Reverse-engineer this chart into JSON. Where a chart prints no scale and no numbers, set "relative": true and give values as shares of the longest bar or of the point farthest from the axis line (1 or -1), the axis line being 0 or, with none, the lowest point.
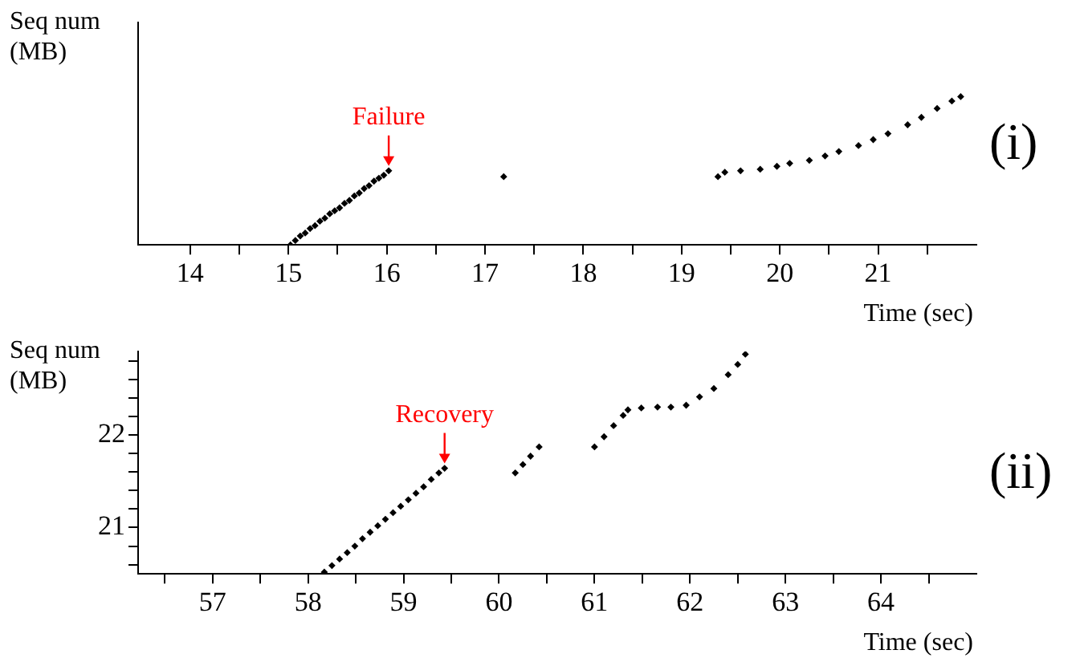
{
  "chart_data": [
    {
      "type": "scatter",
      "xlabel": "Time (sec)",
      "ylabel": "Seq num (MB)",
      "relative": true,
      "marker": "diamond",
      "grid": false,
      "annotations": [
        {
          "text": "Failure",
          "x": 16.02,
          "y": 0.5
        },
        "(i)"
      ],
      "xlim": [
        13.47,
        22.0
      ],
      "xticks": [
        14,
        {
          "value": 14.5,
          "label": null
        },
        15,
        {
          "value": 15.5,
          "label": null
        },
        16,
        {
          "value": 16.5,
          "label": null
        },
        17,
        {
          "value": 17.5,
          "label": null
        },
        18,
        {
          "value": 18.5,
          "label": null
        },
        19,
        {
          "value": 19.5,
          "label": null
        },
        20,
        {
          "value": 20.5,
          "label": null
        },
        21,
        {
          "value": 21.5,
          "label": null
        }
      ],
      "series": [
        {
          "color": "#000000",
          "x": [
            15.02,
            15.07,
            15.12,
            15.17,
            15.22,
            15.27,
            15.32,
            15.37,
            15.42,
            15.47,
            15.52,
            15.57,
            15.62,
            15.67,
            15.72,
            15.77,
            15.82,
            15.87,
            15.92,
            15.97,
            16.02,
            17.19,
            19.37,
            19.44,
            19.6,
            19.8,
            19.97,
            20.1,
            20.3,
            20.46,
            20.6,
            20.8,
            20.95,
            21.1,
            21.3,
            21.44,
            21.6,
            21.75,
            21.84
          ],
          "values": [
            0.0,
            0.03,
            0.06,
            0.08,
            0.11,
            0.13,
            0.16,
            0.18,
            0.21,
            0.23,
            0.25,
            0.28,
            0.3,
            0.33,
            0.35,
            0.38,
            0.4,
            0.43,
            0.45,
            0.47,
            0.5,
            0.46,
            0.46,
            0.49,
            0.5,
            0.51,
            0.53,
            0.55,
            0.57,
            0.6,
            0.63,
            0.67,
            0.71,
            0.75,
            0.81,
            0.86,
            0.92,
            0.97,
            1.0
          ]
        }
      ]
    },
    {
      "type": "scatter",
      "xlabel": "Time (sec)",
      "ylabel": "Seq num (MB)",
      "marker": "diamond",
      "grid": false,
      "annotations": [
        {
          "text": "Recovery",
          "x": 59.43,
          "y": 21.64
        },
        "(ii)"
      ],
      "xlim": [
        56.22,
        65.0
      ],
      "ylim": [
        20.5,
        22.9
      ],
      "xticks": [
        {
          "value": 56.5,
          "label": null
        },
        57,
        {
          "value": 57.5,
          "label": null
        },
        58,
        {
          "value": 58.5,
          "label": null
        },
        59,
        {
          "value": 59.5,
          "label": null
        },
        60,
        {
          "value": 60.5,
          "label": null
        },
        61,
        {
          "value": 61.5,
          "label": null
        },
        62,
        {
          "value": 62.5,
          "label": null
        },
        63,
        {
          "value": 63.5,
          "label": null
        },
        64,
        {
          "value": 64.5,
          "label": null
        }
      ],
      "yticks": [
        {
          "value": 20.6,
          "label": null
        },
        {
          "value": 20.8,
          "label": null
        },
        21,
        {
          "value": 21.2,
          "label": null
        },
        {
          "value": 21.4,
          "label": null
        },
        {
          "value": 21.6,
          "label": null
        },
        {
          "value": 21.8,
          "label": null
        },
        22,
        {
          "value": 22.2,
          "label": null
        },
        {
          "value": 22.4,
          "label": null
        },
        {
          "value": 22.6,
          "label": null
        },
        {
          "value": 22.8,
          "label": null
        }
      ],
      "series": [
        {
          "color": "#000000",
          "x": [
            58.17,
            58.25,
            58.33,
            58.41,
            58.49,
            58.57,
            58.65,
            58.73,
            58.81,
            58.89,
            58.97,
            59.05,
            59.13,
            59.21,
            59.29,
            59.37,
            59.43,
            60.17,
            60.25,
            60.33,
            60.42,
            61.0,
            61.1,
            61.2,
            61.3,
            61.35,
            61.49,
            61.66,
            61.8,
            61.96,
            62.1,
            62.25,
            62.4,
            62.5,
            62.58
          ],
          "values": [
            20.52,
            20.59,
            20.66,
            20.73,
            20.8,
            20.88,
            20.95,
            21.02,
            21.09,
            21.16,
            21.23,
            21.3,
            21.37,
            21.44,
            21.52,
            21.59,
            21.64,
            21.59,
            21.68,
            21.77,
            21.87,
            21.87,
            21.98,
            22.1,
            22.21,
            22.27,
            22.29,
            22.3,
            22.3,
            22.32,
            22.41,
            22.5,
            22.65,
            22.76,
            22.87
          ]
        }
      ]
    }
  ]
}
